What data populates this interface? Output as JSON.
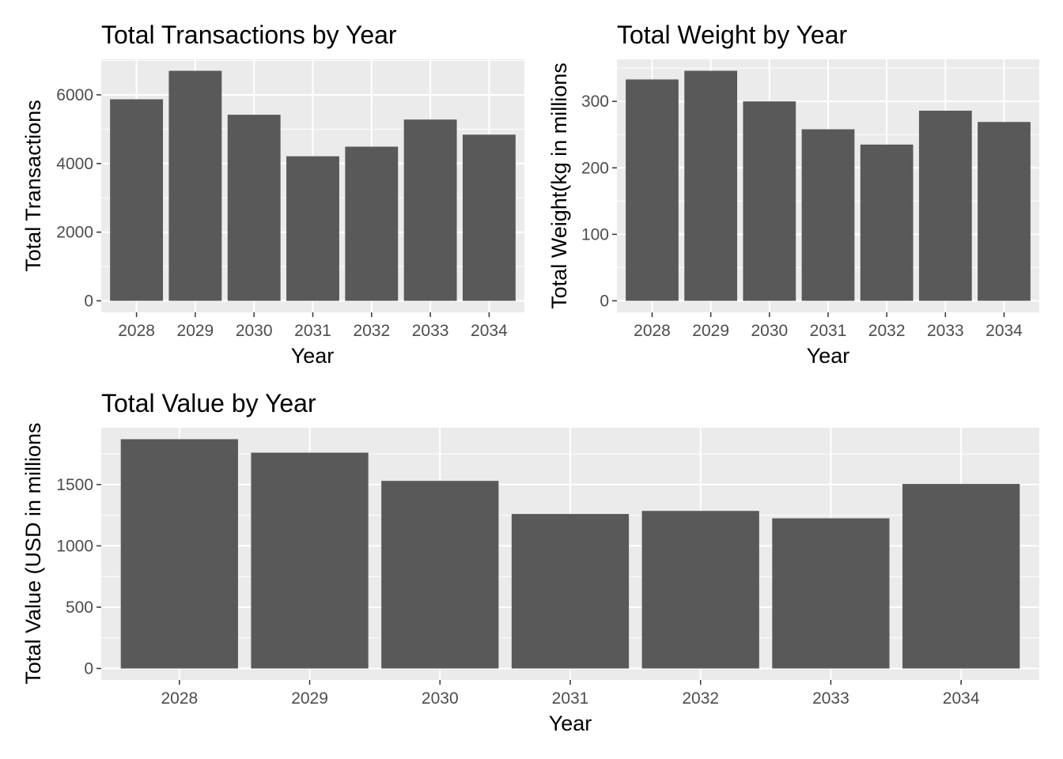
{
  "chart_data": [
    {
      "type": "bar",
      "title": "Total Transactions by Year",
      "xlabel": "Year",
      "ylabel": "Total Transactions",
      "categories": [
        "2028",
        "2029",
        "2030",
        "2031",
        "2032",
        "2033",
        "2034"
      ],
      "values": [
        5870,
        6700,
        5420,
        4210,
        4490,
        5280,
        4840
      ],
      "ylim": [
        -335,
        7035
      ],
      "yticks": [
        0,
        2000,
        4000,
        6000
      ],
      "ytick_labels": [
        "0",
        "2000",
        "4000",
        "6000"
      ],
      "grid": true,
      "bar_color": "#595959",
      "panel_color": "#ebebeb"
    },
    {
      "type": "bar",
      "title": "Total Weight by Year",
      "xlabel": "Year",
      "ylabel": "Total Weight(kg in millions",
      "categories": [
        "2028",
        "2029",
        "2030",
        "2031",
        "2032",
        "2033",
        "2034"
      ],
      "values": [
        333,
        346,
        300,
        258,
        235,
        286,
        269
      ],
      "ylim": [
        -17.3,
        363.3
      ],
      "yticks": [
        0,
        100,
        200,
        300
      ],
      "ytick_labels": [
        "0",
        "100",
        "200",
        "300"
      ],
      "grid": true,
      "bar_color": "#595959",
      "panel_color": "#ebebeb"
    },
    {
      "type": "bar",
      "title": "Total Value by Year",
      "xlabel": "Year",
      "ylabel": "Total Value (USD in millions",
      "categories": [
        "2028",
        "2029",
        "2030",
        "2031",
        "2032",
        "2033",
        "2034"
      ],
      "values": [
        1870,
        1760,
        1530,
        1260,
        1285,
        1225,
        1505
      ],
      "ylim": [
        -93.5,
        1963.5
      ],
      "yticks": [
        0,
        500,
        1000,
        1500
      ],
      "ytick_labels": [
        "0",
        "500",
        "1000",
        "1500"
      ],
      "grid": true,
      "bar_color": "#595959",
      "panel_color": "#ebebeb"
    }
  ]
}
